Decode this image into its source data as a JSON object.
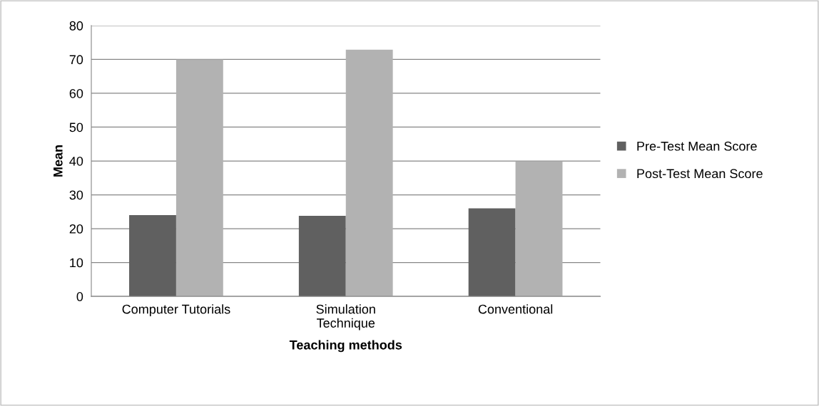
{
  "chart_data": {
    "type": "bar",
    "xlabel": "Teaching methods",
    "ylabel": "Mean",
    "categories": [
      "Computer Tutorials",
      "Simulation\nTechnique",
      "Conventional"
    ],
    "series": [
      {
        "name": "Pre-Test Mean Score",
        "color": "#606060",
        "values": [
          24,
          23.8,
          26
        ]
      },
      {
        "name": "Post-Test Mean Score",
        "color": "#b2b2b2",
        "values": [
          70,
          72.9,
          39.8
        ]
      }
    ],
    "ylim": [
      0,
      80
    ],
    "yticks": [
      0,
      10,
      20,
      30,
      40,
      50,
      60,
      70,
      80
    ],
    "grid": "y",
    "legend": "right"
  }
}
